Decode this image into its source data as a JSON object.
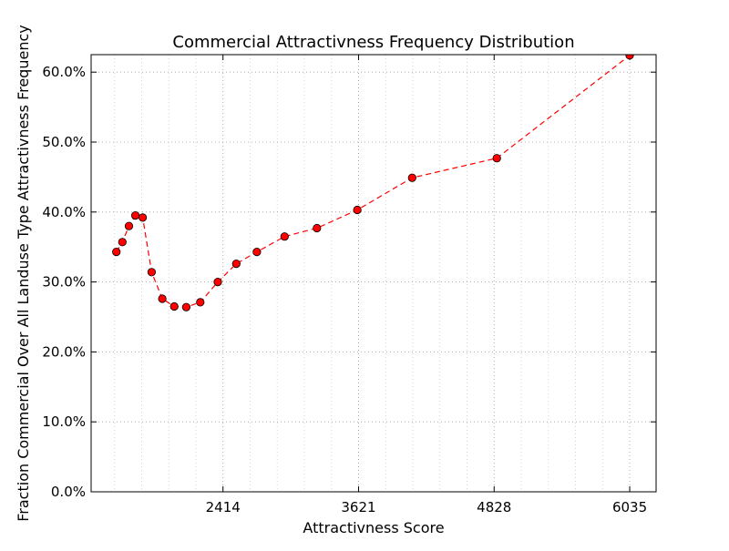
{
  "chart_data": {
    "type": "line",
    "title": "Commercial Attractivness Frequency Distribution",
    "xlabel": "Attractivness Score",
    "ylabel": "Fraction Commercial Over All Landuse Type Attractivness Frequency",
    "xlim": [
      1240,
      6270
    ],
    "ylim": [
      0.0,
      0.625
    ],
    "xticks": [
      2414,
      3621,
      4828,
      6035
    ],
    "yticks": [
      0.0,
      0.1,
      0.2,
      0.3,
      0.4,
      0.5,
      0.6
    ],
    "ytick_labels": [
      "0.0%",
      "10.0%",
      "20.0%",
      "30.0%",
      "40.0%",
      "50.0%",
      "60.0%"
    ],
    "grid": true,
    "series": [
      {
        "line_style": "dashed",
        "color": "#ff0000",
        "marker": "circle",
        "marker_color": "#ff0000",
        "x": [
          1465,
          1518,
          1577,
          1634,
          1699,
          1779,
          1874,
          1980,
          2087,
          2212,
          2368,
          2532,
          2716,
          2962,
          3250,
          3610,
          4098,
          4852,
          6035
        ],
        "y": [
          0.343,
          0.357,
          0.38,
          0.395,
          0.392,
          0.314,
          0.276,
          0.265,
          0.264,
          0.271,
          0.3,
          0.326,
          0.343,
          0.365,
          0.377,
          0.403,
          0.449,
          0.477,
          0.624
        ]
      }
    ]
  }
}
